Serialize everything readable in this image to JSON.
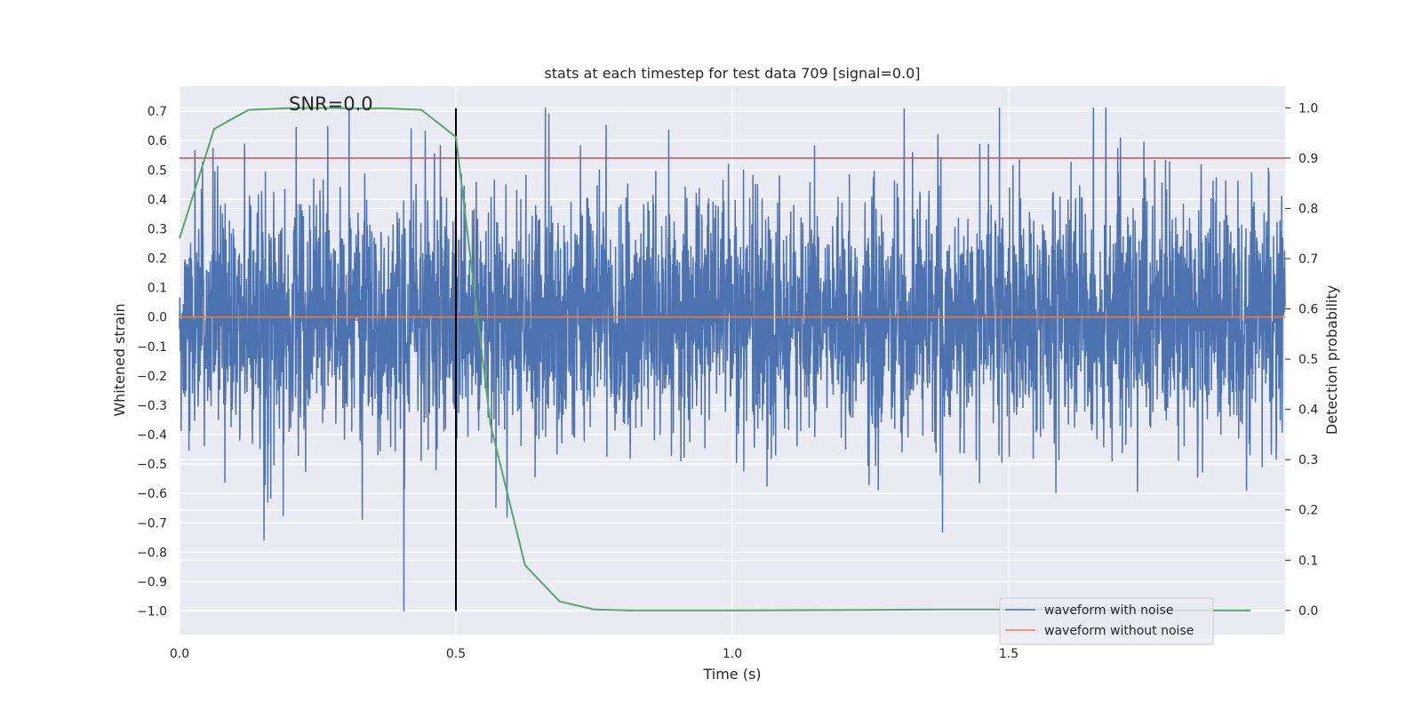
{
  "chart_data": {
    "type": "line",
    "title": "stats at each timestep for test data 709 [signal=0.0]",
    "annotation": "SNR=0.0",
    "xlabel": "Time (s)",
    "ylabel": "Whitened strain",
    "ylabel_right": "Detection probability",
    "xlim": [
      0.0,
      2.0
    ],
    "ylim": [
      -1.08,
      0.785
    ],
    "ylim_right": [
      -0.048,
      1.043
    ],
    "xticks": [
      0.0,
      0.5,
      1.0,
      1.5
    ],
    "xtick_labels": [
      "0.0",
      "0.5",
      "1.0",
      "1.5"
    ],
    "yticks": [
      -1.0,
      -0.9,
      -0.8,
      -0.7,
      -0.6,
      -0.5,
      -0.4,
      -0.3,
      -0.2,
      -0.1,
      0.0,
      0.1,
      0.2,
      0.3,
      0.4,
      0.5,
      0.6,
      0.7
    ],
    "ytick_labels": [
      "−1.0",
      "−0.9",
      "−0.8",
      "−0.7",
      "−0.6",
      "−0.5",
      "−0.4",
      "−0.3",
      "−0.2",
      "−0.1",
      "0.0",
      "0.1",
      "0.2",
      "0.3",
      "0.4",
      "0.5",
      "0.6",
      "0.7"
    ],
    "yticks_right": [
      0.0,
      0.1,
      0.2,
      0.3,
      0.4,
      0.5,
      0.6,
      0.7,
      0.8,
      0.9,
      1.0
    ],
    "ytick_labels_right": [
      "0.0",
      "0.1",
      "0.2",
      "0.3",
      "0.4",
      "0.5",
      "0.6",
      "0.7",
      "0.8",
      "0.9",
      "1.0"
    ],
    "grid": true,
    "legend_position": "bottom-right",
    "noise_series": {
      "name": "waveform with noise",
      "color": "#4c72b0",
      "x_start": 0.0,
      "x_end": 2.0,
      "n_samples": 4096,
      "std": 0.2,
      "min": -1.0,
      "max": 0.71,
      "notable_points": [
        {
          "x": 0.406,
          "y": -1.0
        },
        {
          "x": 0.419,
          "y": 0.64
        },
        {
          "x": 1.38,
          "y": -0.73
        },
        {
          "x": 1.653,
          "y": 0.71
        },
        {
          "x": 0.668,
          "y": 0.69
        },
        {
          "x": 1.372,
          "y": 0.62
        }
      ]
    },
    "clean_series": {
      "name": "waveform without noise",
      "color": "#dd8452",
      "x": [
        0.0,
        2.0
      ],
      "y": [
        0.0,
        0.0
      ]
    },
    "probability_series": {
      "name": "detection probability",
      "color": "#55a868",
      "axis": "right",
      "x": [
        0.0,
        0.0625,
        0.125,
        0.1875,
        0.25,
        0.3125,
        0.375,
        0.4375,
        0.5,
        0.5625,
        0.625,
        0.6875,
        0.75,
        0.8125,
        1.0,
        1.25,
        1.375,
        1.5,
        1.75,
        1.9375
      ],
      "y": [
        0.74,
        0.958,
        0.996,
        0.999,
        1.0,
        0.999,
        0.999,
        0.996,
        0.942,
        0.37,
        0.09,
        0.018,
        0.002,
        0.0,
        0.0,
        0.001,
        0.002,
        0.002,
        0.0,
        0.0
      ]
    },
    "threshold_line": {
      "axis": "right",
      "y": 0.9,
      "color": "#c44e52"
    },
    "marker_line": {
      "x": 0.5,
      "y_from": -1.0,
      "y_to": 0.71,
      "color": "#000000"
    }
  }
}
